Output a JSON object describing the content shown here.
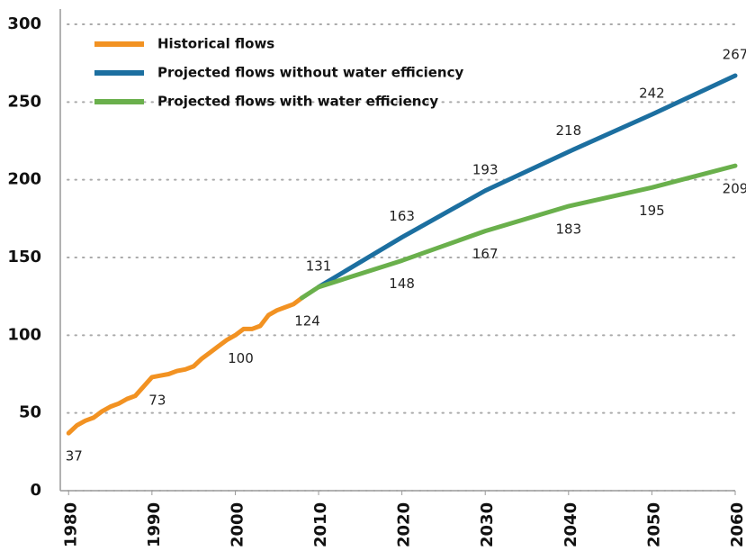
{
  "chart_data": {
    "type": "line",
    "xlim": [
      1979,
      2060
    ],
    "xticks": [
      1980,
      1990,
      2000,
      2010,
      2020,
      2030,
      2040,
      2050,
      2060
    ],
    "ylim": [
      0,
      300
    ],
    "yticks": [
      0,
      50,
      100,
      150,
      200,
      250,
      300
    ],
    "grid": true,
    "legend": "upper-left",
    "series": [
      {
        "name": "Historical flows",
        "color": "#f29222",
        "x": [
          1980,
          1981,
          1982,
          1983,
          1984,
          1985,
          1986,
          1987,
          1988,
          1989,
          1990,
          1991,
          1992,
          1993,
          1994,
          1995,
          1996,
          1997,
          1998,
          1999,
          2000,
          2001,
          2002,
          2003,
          2004,
          2005,
          2006,
          2007,
          2008
        ],
        "values": [
          37,
          42,
          45,
          47,
          51,
          54,
          56,
          59,
          61,
          67,
          73,
          74,
          75,
          77,
          78,
          80,
          85,
          89,
          93,
          97,
          100,
          104,
          104,
          106,
          113,
          116,
          118,
          120,
          124
        ],
        "value_labels": [
          "37",
          null,
          null,
          null,
          null,
          null,
          null,
          null,
          null,
          null,
          "73",
          null,
          null,
          null,
          null,
          null,
          null,
          null,
          null,
          null,
          "100",
          null,
          null,
          null,
          null,
          null,
          null,
          null,
          "124"
        ]
      },
      {
        "name": "Projected flows without water efficiency",
        "color": "#1c6fa0",
        "x": [
          2010,
          2020,
          2030,
          2040,
          2050,
          2060
        ],
        "values": [
          131,
          163,
          193,
          218,
          242,
          267
        ],
        "value_labels": [
          "131",
          "163",
          "193",
          "218",
          "242",
          "267"
        ]
      },
      {
        "name": "Projected flows with water efficiency",
        "color": "#6ab04c",
        "x": [
          2008,
          2010,
          2020,
          2030,
          2040,
          2050,
          2060
        ],
        "values": [
          124,
          131,
          148,
          167,
          183,
          195,
          209
        ],
        "value_labels": [
          null,
          null,
          "148",
          "167",
          "183",
          "195",
          "209"
        ]
      }
    ]
  }
}
